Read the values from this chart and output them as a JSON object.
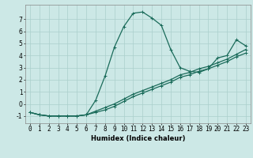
{
  "title": "",
  "xlabel": "Humidex (Indice chaleur)",
  "ylabel": "",
  "background_color": "#cce8e6",
  "grid_color": "#aacfcc",
  "line_color": "#1a6b5a",
  "xlim": [
    -0.5,
    23.5
  ],
  "ylim": [
    -1.6,
    8.2
  ],
  "xticks": [
    0,
    1,
    2,
    3,
    4,
    5,
    6,
    7,
    8,
    9,
    10,
    11,
    12,
    13,
    14,
    15,
    16,
    17,
    18,
    19,
    20,
    21,
    22,
    23
  ],
  "yticks": [
    -1,
    0,
    1,
    2,
    3,
    4,
    5,
    6,
    7
  ],
  "series1_x": [
    0,
    1,
    2,
    3,
    4,
    5,
    6,
    7,
    8,
    9,
    10,
    11,
    12,
    13,
    14,
    15,
    16,
    17,
    18,
    19,
    20,
    21,
    22,
    23
  ],
  "series1_y": [
    -0.7,
    -0.9,
    -1.0,
    -1.0,
    -1.0,
    -1.0,
    -0.9,
    0.3,
    2.3,
    4.7,
    6.4,
    7.5,
    7.6,
    7.1,
    6.5,
    4.5,
    3.0,
    2.7,
    2.6,
    2.9,
    3.8,
    4.0,
    5.3,
    4.8
  ],
  "series2_x": [
    0,
    1,
    2,
    3,
    4,
    5,
    6,
    7,
    8,
    9,
    10,
    11,
    12,
    13,
    14,
    15,
    16,
    17,
    18,
    19,
    20,
    21,
    22,
    23
  ],
  "series2_y": [
    -0.7,
    -0.9,
    -1.0,
    -1.0,
    -1.0,
    -1.0,
    -0.9,
    -0.7,
    -0.5,
    -0.2,
    0.2,
    0.6,
    0.9,
    1.2,
    1.5,
    1.8,
    2.2,
    2.4,
    2.7,
    2.9,
    3.2,
    3.5,
    3.9,
    4.2
  ],
  "series3_x": [
    0,
    1,
    2,
    3,
    4,
    5,
    6,
    7,
    8,
    9,
    10,
    11,
    12,
    13,
    14,
    15,
    16,
    17,
    18,
    19,
    20,
    21,
    22,
    23
  ],
  "series3_y": [
    -0.7,
    -0.9,
    -1.0,
    -1.0,
    -1.0,
    -1.0,
    -0.9,
    -0.6,
    -0.3,
    0.0,
    0.4,
    0.8,
    1.1,
    1.4,
    1.7,
    2.0,
    2.4,
    2.6,
    2.9,
    3.1,
    3.4,
    3.7,
    4.1,
    4.5
  ],
  "marker": "+",
  "markersize": 3.5,
  "linewidth": 0.9,
  "axis_fontsize": 6,
  "tick_fontsize": 5.5
}
